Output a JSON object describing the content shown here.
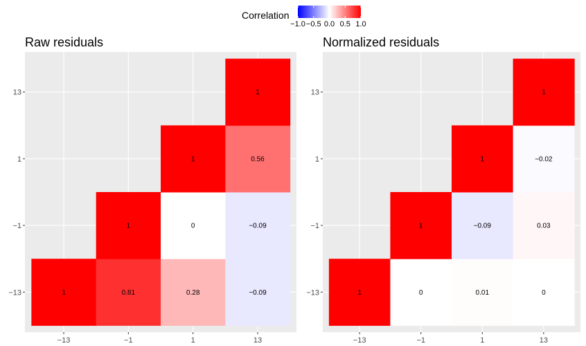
{
  "legend": {
    "title": "Correlation",
    "ticks": [
      "-1.0",
      "-0.5",
      "0.0",
      "0.5",
      "1.0"
    ],
    "tick_values": [
      -1,
      -0.5,
      0,
      0.5,
      1
    ],
    "low_color": "#0000ff",
    "mid_color": "#ffffff",
    "high_color": "#ff0000"
  },
  "chart_data": [
    {
      "type": "heatmap",
      "title": "Raw residuals",
      "categories": [
        "-13",
        "-1",
        "1",
        "13"
      ],
      "cells": [
        {
          "x": "-13",
          "y": "-13",
          "value": 1,
          "label": "1"
        },
        {
          "x": "-1",
          "y": "-13",
          "value": 0.81,
          "label": "0.81"
        },
        {
          "x": "1",
          "y": "-13",
          "value": 0.28,
          "label": "0.28"
        },
        {
          "x": "13",
          "y": "-13",
          "value": -0.09,
          "label": "-0.09"
        },
        {
          "x": "-1",
          "y": "-1",
          "value": 1,
          "label": "1"
        },
        {
          "x": "1",
          "y": "-1",
          "value": 0,
          "label": "0"
        },
        {
          "x": "13",
          "y": "-1",
          "value": -0.09,
          "label": "-0.09"
        },
        {
          "x": "1",
          "y": "1",
          "value": 1,
          "label": "1"
        },
        {
          "x": "13",
          "y": "1",
          "value": 0.56,
          "label": "0.56"
        },
        {
          "x": "13",
          "y": "13",
          "value": 1,
          "label": "1"
        }
      ]
    },
    {
      "type": "heatmap",
      "title": "Normalized residuals",
      "categories": [
        "-13",
        "-1",
        "1",
        "13"
      ],
      "cells": [
        {
          "x": "-13",
          "y": "-13",
          "value": 1,
          "label": "1"
        },
        {
          "x": "-1",
          "y": "-13",
          "value": 0,
          "label": "0"
        },
        {
          "x": "1",
          "y": "-13",
          "value": 0.01,
          "label": "0.01"
        },
        {
          "x": "13",
          "y": "-13",
          "value": 0,
          "label": "0"
        },
        {
          "x": "-1",
          "y": "-1",
          "value": 1,
          "label": "1"
        },
        {
          "x": "1",
          "y": "-1",
          "value": -0.09,
          "label": "-0.09"
        },
        {
          "x": "13",
          "y": "-1",
          "value": 0.03,
          "label": "0.03"
        },
        {
          "x": "1",
          "y": "1",
          "value": 1,
          "label": "1"
        },
        {
          "x": "13",
          "y": "1",
          "value": -0.02,
          "label": "-0.02"
        },
        {
          "x": "13",
          "y": "13",
          "value": 1,
          "label": "1"
        }
      ]
    }
  ]
}
